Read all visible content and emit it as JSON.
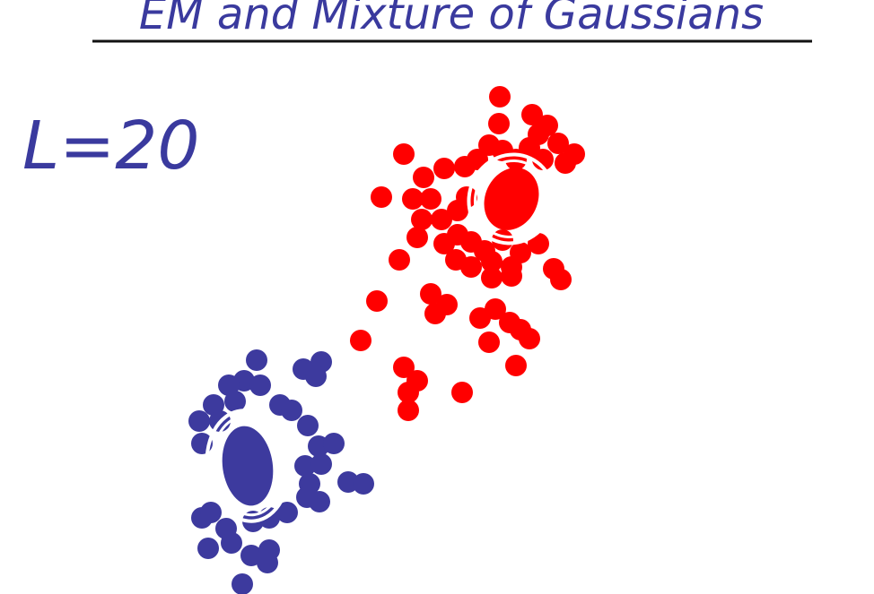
{
  "title": "EM and Mixture of Gaussians",
  "annotation": "L=20",
  "colors": {
    "ink": "#3a3a9e",
    "rule": "#111111",
    "cluster_red": "#ff0000",
    "cluster_blue": "#3d3a9e",
    "ellipse_outline": "#ffffff"
  },
  "clusters": [
    {
      "id": "red",
      "color": "#ff0000",
      "points": [
        [
          557,
          108
        ],
        [
          556,
          138
        ],
        [
          593,
          128
        ],
        [
          610,
          140
        ],
        [
          600,
          150
        ],
        [
          622,
          160
        ],
        [
          640,
          172
        ],
        [
          630,
          182
        ],
        [
          450,
          172
        ],
        [
          472,
          198
        ],
        [
          495,
          188
        ],
        [
          518,
          186
        ],
        [
          532,
          178
        ],
        [
          545,
          162
        ],
        [
          560,
          168
        ],
        [
          575,
          178
        ],
        [
          590,
          165
        ],
        [
          605,
          178
        ],
        [
          425,
          220
        ],
        [
          460,
          222
        ],
        [
          480,
          222
        ],
        [
          470,
          245
        ],
        [
          492,
          245
        ],
        [
          510,
          235
        ],
        [
          520,
          220
        ],
        [
          465,
          265
        ],
        [
          495,
          272
        ],
        [
          510,
          262
        ],
        [
          525,
          270
        ],
        [
          540,
          280
        ],
        [
          560,
          268
        ],
        [
          580,
          282
        ],
        [
          600,
          272
        ],
        [
          445,
          290
        ],
        [
          508,
          290
        ],
        [
          525,
          298
        ],
        [
          548,
          292
        ],
        [
          570,
          298
        ],
        [
          617,
          300
        ],
        [
          625,
          312
        ],
        [
          480,
          328
        ],
        [
          498,
          340
        ],
        [
          485,
          350
        ],
        [
          548,
          310
        ],
        [
          570,
          308
        ],
        [
          420,
          336
        ],
        [
          535,
          355
        ],
        [
          552,
          345
        ],
        [
          568,
          360
        ],
        [
          580,
          368
        ],
        [
          590,
          378
        ],
        [
          545,
          382
        ],
        [
          402,
          380
        ],
        [
          450,
          410
        ],
        [
          465,
          425
        ],
        [
          455,
          438
        ],
        [
          515,
          438
        ],
        [
          575,
          408
        ],
        [
          455,
          458
        ]
      ]
    },
    {
      "id": "blue",
      "color": "#3d3a9e",
      "points": [
        [
          286,
          402
        ],
        [
          272,
          425
        ],
        [
          290,
          430
        ],
        [
          255,
          430
        ],
        [
          238,
          452
        ],
        [
          262,
          448
        ],
        [
          312,
          452
        ],
        [
          325,
          458
        ],
        [
          338,
          412
        ],
        [
          358,
          404
        ],
        [
          352,
          420
        ],
        [
          222,
          470
        ],
        [
          245,
          470
        ],
        [
          225,
          495
        ],
        [
          343,
          475
        ],
        [
          355,
          498
        ],
        [
          372,
          495
        ],
        [
          340,
          520
        ],
        [
          358,
          518
        ],
        [
          345,
          540
        ],
        [
          388,
          538
        ],
        [
          405,
          540
        ],
        [
          356,
          560
        ],
        [
          342,
          555
        ],
        [
          320,
          572
        ],
        [
          225,
          578
        ],
        [
          235,
          572
        ],
        [
          252,
          590
        ],
        [
          282,
          582
        ],
        [
          300,
          578
        ],
        [
          232,
          612
        ],
        [
          258,
          606
        ],
        [
          280,
          620
        ],
        [
          300,
          614
        ],
        [
          298,
          628
        ],
        [
          270,
          652
        ]
      ]
    }
  ],
  "ellipses": [
    {
      "cluster": "red",
      "cx": 570,
      "cy": 222,
      "rx": 47,
      "ry": 50,
      "rotate": 25
    },
    {
      "cluster": "blue",
      "cx": 276,
      "cy": 520,
      "rx": 45,
      "ry": 62,
      "rotate": -8
    }
  ]
}
